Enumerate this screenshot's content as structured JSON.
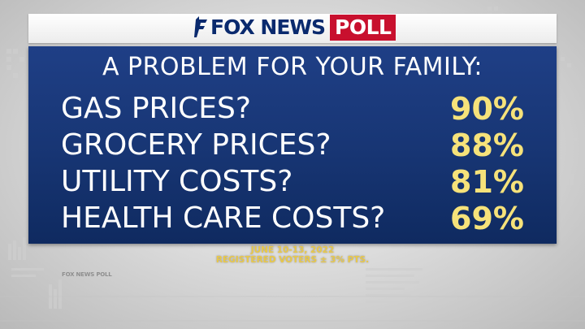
{
  "header": {
    "logo_fox": "FOX NEWS",
    "logo_poll": "POLL"
  },
  "title": "A PROBLEM FOR YOUR FAMILY:",
  "items": [
    {
      "label": "GAS PRICES?",
      "value": "90%"
    },
    {
      "label": "GROCERY PRICES?",
      "value": "88%"
    },
    {
      "label": "UTILITY COSTS?",
      "value": "81%"
    },
    {
      "label": "HEALTH CARE COSTS?",
      "value": "69%"
    }
  ],
  "footnote": {
    "date": "JUNE 10-13, 2022",
    "sample": "REGISTERED VOTERS ± 3% PTS."
  },
  "background_mark": "FOX NEWS POLL",
  "colors": {
    "board": "#1a3978",
    "value_text": "#f6e27a",
    "footnote_text": "#e8c84a",
    "brand_navy": "#0a2a6e",
    "brand_red": "#c8102e"
  }
}
